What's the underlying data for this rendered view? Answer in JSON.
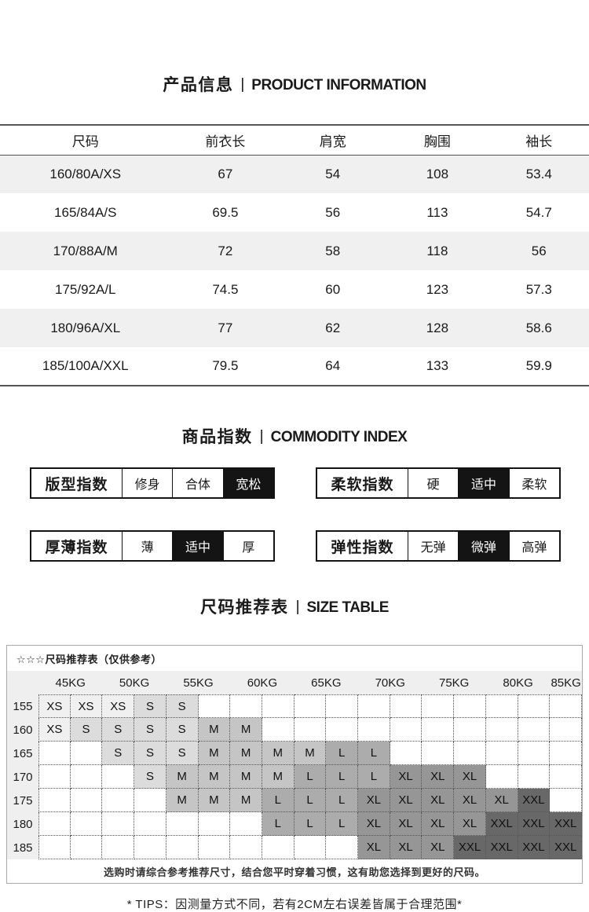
{
  "sections": {
    "product_info": {
      "zh": "产品信息",
      "divider": "|",
      "en": "PRODUCT INFORMATION"
    },
    "commodity_index": {
      "zh": "商品指数",
      "divider": "|",
      "en": "COMMODITY INDEX"
    },
    "size_table": {
      "zh": "尺码推荐表",
      "divider": "|",
      "en": "SIZE TABLE"
    }
  },
  "product_table": {
    "headers": [
      "尺码",
      "前衣长",
      "肩宽",
      "胸围",
      "袖长"
    ],
    "rows": [
      [
        "160/80A/XS",
        "67",
        "54",
        "108",
        "53.4"
      ],
      [
        "165/84A/S",
        "69.5",
        "56",
        "113",
        "54.7"
      ],
      [
        "170/88A/M",
        "72",
        "58",
        "118",
        "56"
      ],
      [
        "175/92A/L",
        "74.5",
        "60",
        "123",
        "57.3"
      ],
      [
        "180/96A/XL",
        "77",
        "62",
        "128",
        "58.6"
      ],
      [
        "185/100A/XXL",
        "79.5",
        "64",
        "133",
        "59.9"
      ]
    ]
  },
  "commodity_index": {
    "groups": [
      {
        "label": "版型指数",
        "options": [
          "修身",
          "合体",
          "宽松"
        ],
        "selected": 2
      },
      {
        "label": "柔软指数",
        "options": [
          "硬",
          "适中",
          "柔软"
        ],
        "selected": 1
      },
      {
        "label": "厚薄指数",
        "options": [
          "薄",
          "适中",
          "厚"
        ],
        "selected": 1
      },
      {
        "label": "弹性指数",
        "options": [
          "无弹",
          "微弹",
          "高弹"
        ],
        "selected": 1
      }
    ]
  },
  "size_table": {
    "box_title": "☆☆☆尺码推荐表（仅供参考）",
    "weights": [
      "45KG",
      "50KG",
      "55KG",
      "60KG",
      "65KG",
      "70KG",
      "75KG",
      "80KG",
      "85KG"
    ],
    "heights": [
      "155",
      "160",
      "165",
      "170",
      "175",
      "180",
      "185"
    ],
    "cells": [
      [
        "XS",
        "XS",
        "XS",
        "S",
        "S",
        "",
        "",
        "",
        "",
        "",
        "",
        "",
        "",
        "",
        "",
        "",
        ""
      ],
      [
        "XS",
        "S",
        "S",
        "S",
        "S",
        "M",
        "M",
        "",
        "",
        "",
        "",
        "",
        "",
        "",
        "",
        "",
        ""
      ],
      [
        "",
        "",
        "S",
        "S",
        "S",
        "M",
        "M",
        "M",
        "M",
        "L",
        "L",
        "",
        "",
        "",
        "",
        "",
        ""
      ],
      [
        "",
        "",
        "",
        "S",
        "M",
        "M",
        "M",
        "M",
        "L",
        "L",
        "L",
        "XL",
        "XL",
        "XL",
        "",
        "",
        ""
      ],
      [
        "",
        "",
        "",
        "",
        "M",
        "M",
        "M",
        "L",
        "L",
        "L",
        "XL",
        "XL",
        "XL",
        "XL",
        "XL",
        "XXL",
        ""
      ],
      [
        "",
        "",
        "",
        "",
        "",
        "",
        "",
        "L",
        "L",
        "L",
        "XL",
        "XL",
        "XL",
        "XL",
        "XXL",
        "XXL",
        "XXL"
      ],
      [
        "",
        "",
        "",
        "",
        "",
        "",
        "",
        "",
        "",
        "",
        "XL",
        "XL",
        "XL",
        "XXL",
        "XXL",
        "XXL",
        "XXL"
      ]
    ],
    "size_colors": {
      "XS": "#f0f0f0",
      "S": "#dcdcdc",
      "M": "#c5c5c5",
      "L": "#acacac",
      "XL": "#969696",
      "XXL": "#686868"
    },
    "footer_note": "选购时请综合参考推荐尺寸，结合您平时穿着习惯，这有助您选择到更好的尺码。"
  },
  "tips": "* TIPS：因测量方式不同，若有2CM左右误差皆属于合理范围*",
  "colors": {
    "accent_black": "#141414",
    "table_alt_row": "#f0f0f0",
    "grid_header_bg": "#efefef",
    "table_border": "#555555",
    "box_border": "#a9a9a9"
  }
}
